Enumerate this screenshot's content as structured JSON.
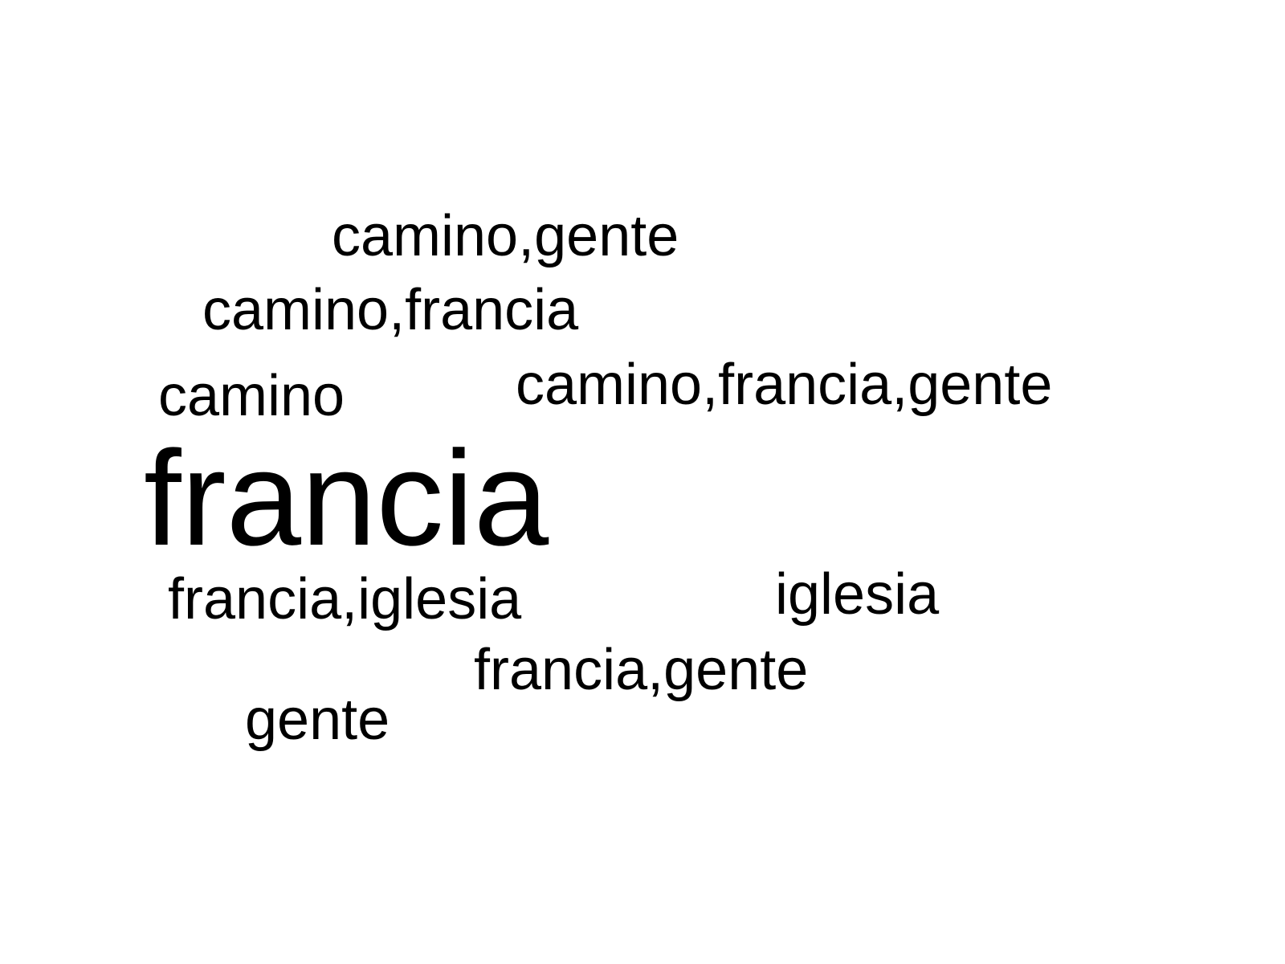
{
  "wordcloud": {
    "words": [
      {
        "text": "camino,gente"
      },
      {
        "text": "camino,francia"
      },
      {
        "text": "camino"
      },
      {
        "text": "camino,francia,gente"
      },
      {
        "text": "francia"
      },
      {
        "text": "francia,iglesia"
      },
      {
        "text": "iglesia"
      },
      {
        "text": "francia,gente"
      },
      {
        "text": "gente"
      }
    ],
    "text_color": "#000000",
    "background_color": "#ffffff"
  }
}
